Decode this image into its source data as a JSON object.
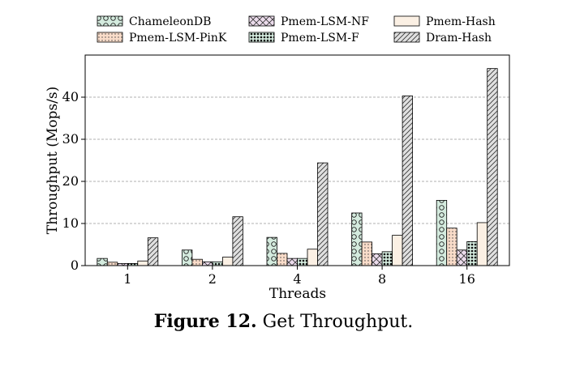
{
  "chart_data": {
    "type": "bar",
    "title": "",
    "xlabel": "Threads",
    "ylabel": "Throughput (Mops/s)",
    "categories": [
      "1",
      "2",
      "4",
      "8",
      "16"
    ],
    "ylim": [
      0,
      50
    ],
    "yticks": [
      0,
      10,
      20,
      30,
      40
    ],
    "grid": "horizontal-dashed",
    "legend_position": "top",
    "series": [
      {
        "name": "ChameleonDB",
        "values": [
          1.7,
          3.7,
          6.7,
          12.5,
          15.5
        ],
        "color": "#d4ebde",
        "pattern": "circles"
      },
      {
        "name": "Pmem-LSM-PinK",
        "values": [
          0.8,
          1.5,
          2.9,
          5.6,
          8.9
        ],
        "color": "#f9dcc9",
        "pattern": "dots"
      },
      {
        "name": "Pmem-LSM-NF",
        "values": [
          0.5,
          0.9,
          1.7,
          2.8,
          3.7
        ],
        "color": "#ecdcec",
        "pattern": "crosshatch"
      },
      {
        "name": "Pmem-LSM-F",
        "values": [
          0.5,
          0.9,
          1.7,
          3.3,
          5.7
        ],
        "color": "#d4ebde",
        "pattern": "dense-dots"
      },
      {
        "name": "Pmem-Hash",
        "values": [
          1.1,
          2.0,
          3.9,
          7.2,
          10.2
        ],
        "color": "#fbf0e4",
        "pattern": "none"
      },
      {
        "name": "Dram-Hash",
        "values": [
          6.6,
          11.6,
          24.4,
          40.3,
          46.8
        ],
        "color": "#e0e0e0",
        "pattern": "diagonal"
      }
    ]
  },
  "caption": {
    "number": "Figure 12.",
    "text": "Get Throughput."
  }
}
